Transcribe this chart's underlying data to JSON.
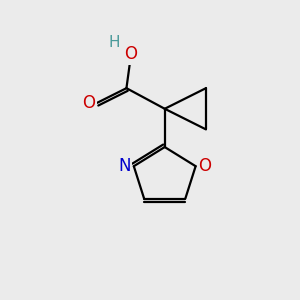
{
  "background_color": "#ebebeb",
  "bond_color": "#000000",
  "atom_colors": {
    "O": "#cc0000",
    "N": "#0000cc",
    "H": "#4a9a9a",
    "C": "#000000"
  },
  "figsize": [
    3.0,
    3.0
  ],
  "dpi": 100
}
